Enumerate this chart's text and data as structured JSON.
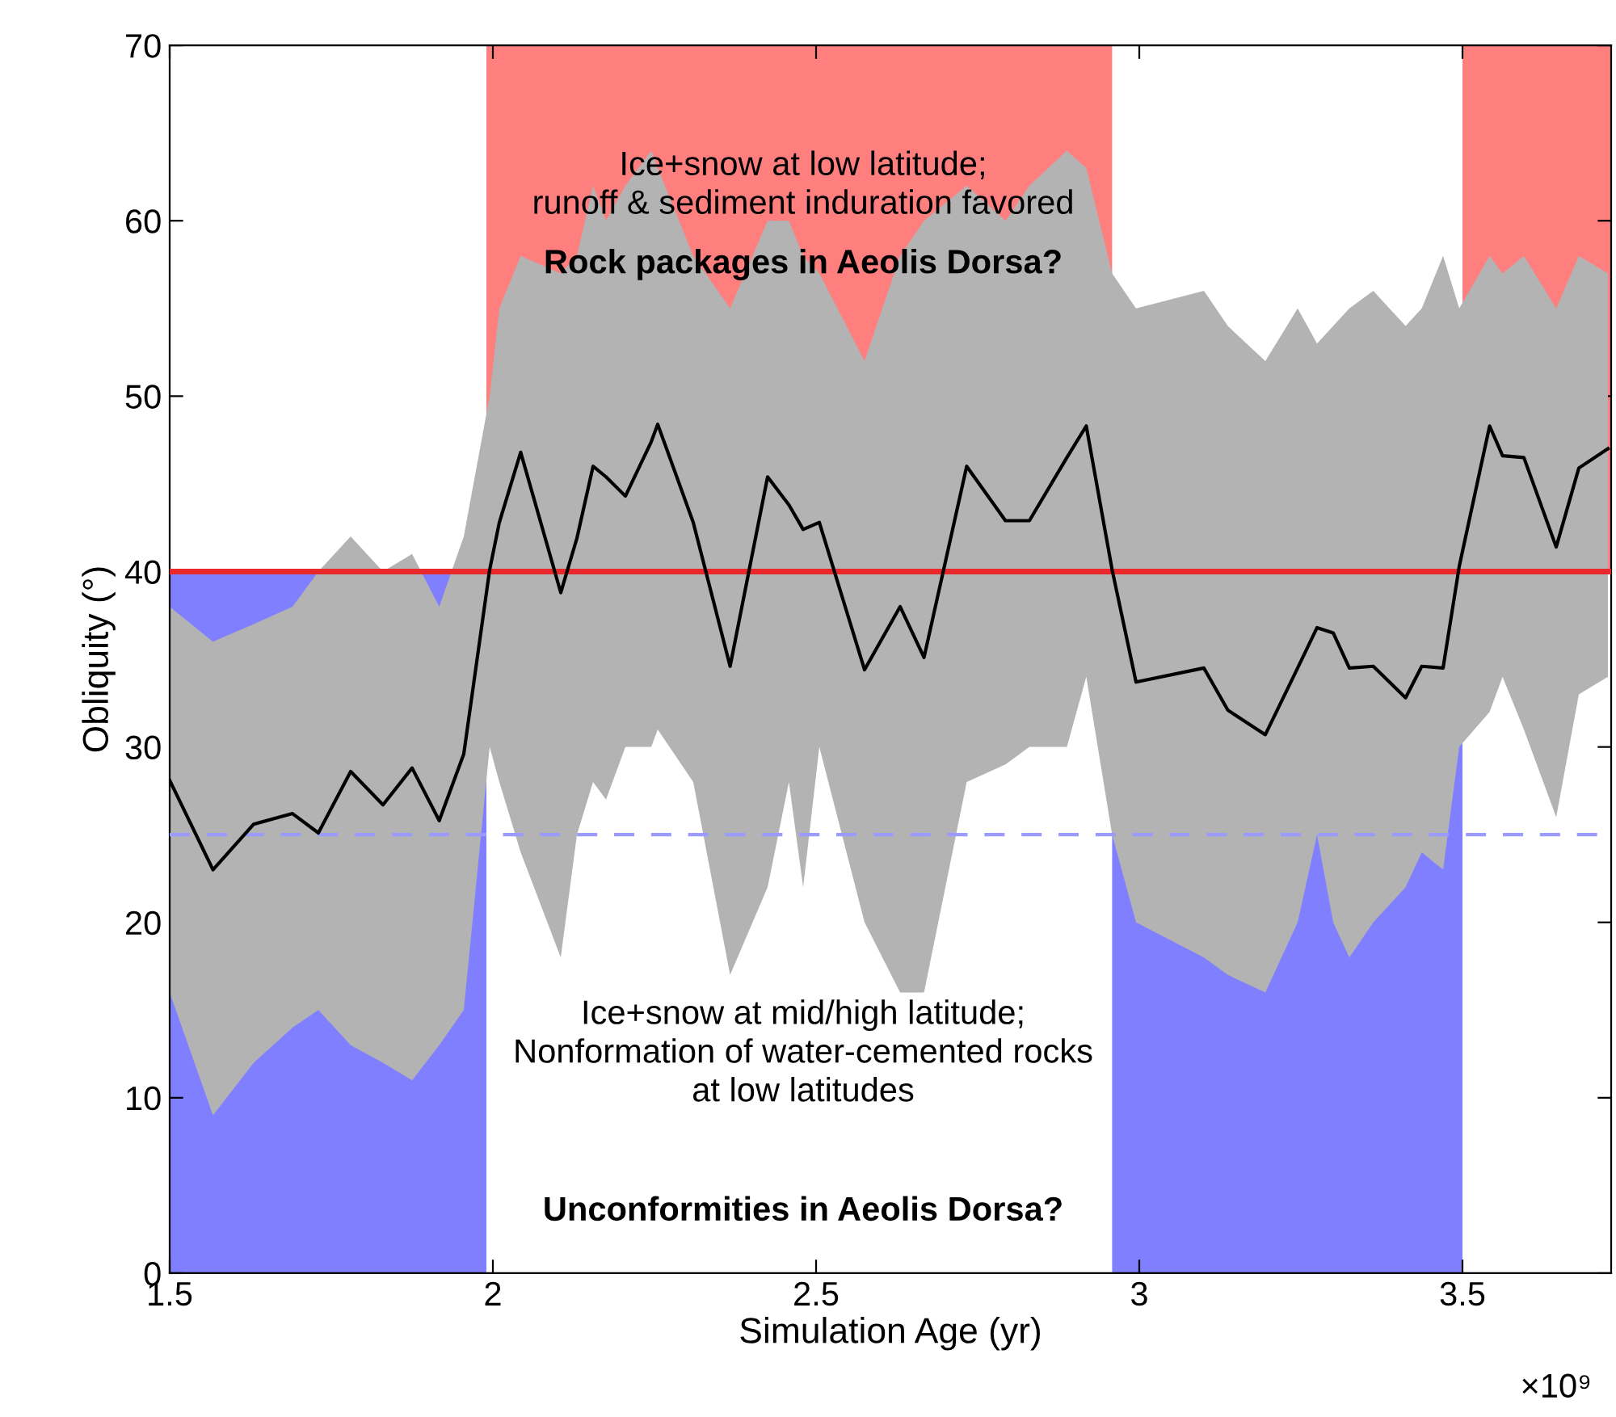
{
  "chart_data": {
    "type": "line",
    "xlabel": "Simulation Age (yr)",
    "ylabel": "Obliquity (°)",
    "x": [
      1.5,
      1.567,
      1.63,
      1.69,
      1.73,
      1.78,
      1.83,
      1.875,
      1.917,
      1.955,
      1.995,
      2.01,
      2.043,
      2.105,
      2.13,
      2.155,
      2.175,
      2.205,
      2.245,
      2.255,
      2.31,
      2.367,
      2.425,
      2.458,
      2.48,
      2.505,
      2.575,
      2.63,
      2.667,
      2.733,
      2.793,
      2.83,
      2.888,
      2.918,
      2.958,
      2.995,
      3.1,
      3.137,
      3.195,
      3.245,
      3.275,
      3.3,
      3.325,
      3.362,
      3.412,
      3.437,
      3.47,
      3.495,
      3.542,
      3.562,
      3.595,
      3.645,
      3.68,
      3.725
    ],
    "series": [
      {
        "color": "#000000",
        "values": [
          28.1,
          23.0,
          25.6,
          26.2,
          25.1,
          28.6,
          26.7,
          28.8,
          25.8,
          29.6,
          40.1,
          42.8,
          46.8,
          38.8,
          41.9,
          46.0,
          45.4,
          44.3,
          47.4,
          48.4,
          42.8,
          34.6,
          45.4,
          43.8,
          42.4,
          42.8,
          34.4,
          38.0,
          35.1,
          46.0,
          42.9,
          42.9,
          46.5,
          48.3,
          40.1,
          33.7,
          34.5,
          32.1,
          30.7,
          34.5,
          36.8,
          36.5,
          34.5,
          34.6,
          32.8,
          34.6,
          34.5,
          40.3,
          48.3,
          46.6,
          46.5,
          41.4,
          45.9,
          47.0
        ],
        "lower": [
          16,
          9,
          12,
          14,
          15,
          13,
          12,
          11,
          13,
          15,
          30,
          28,
          24,
          18,
          25,
          28,
          27,
          30,
          30,
          31,
          28,
          17,
          22,
          28,
          22,
          30,
          20,
          16,
          16,
          28,
          29,
          30,
          30,
          34,
          25,
          20,
          18,
          17,
          16,
          20,
          25,
          20,
          18,
          20,
          22,
          24,
          23,
          30,
          32,
          34,
          31,
          26,
          33,
          34
        ],
        "upper": [
          38,
          36,
          37,
          38,
          40,
          42,
          40,
          41,
          38,
          42,
          50,
          55,
          58,
          57,
          58,
          62,
          60,
          62,
          64,
          63,
          58,
          55,
          60,
          60,
          58,
          57,
          52,
          58,
          60,
          62,
          60,
          62,
          64,
          63,
          57,
          55,
          56,
          54,
          52,
          55,
          53,
          54,
          55,
          56,
          54,
          55,
          58,
          55,
          58,
          57,
          58,
          55,
          58,
          57
        ]
      }
    ],
    "xlim": [
      1.5,
      3.73
    ],
    "xticks": [
      1.5,
      2,
      2.5,
      3,
      3.5
    ],
    "ylim": [
      0,
      70
    ],
    "yticks": [
      0,
      10,
      20,
      30,
      40,
      50,
      60,
      70
    ],
    "grid": false,
    "legend": false,
    "ref_lines": [
      {
        "axis": "y",
        "value": 40,
        "color": "#e8282a",
        "line_style": "solid"
      },
      {
        "axis": "y",
        "value": 25,
        "color": "#9a9aff",
        "line_style": "dashed"
      }
    ],
    "bands": [
      {
        "axis": "x",
        "from": 1.5,
        "to": 1.99,
        "color": "#7f7fff"
      },
      {
        "axis": "x",
        "from": 1.99,
        "to": 2.958,
        "color": "#ff7f7f"
      },
      {
        "axis": "x",
        "from": 2.958,
        "to": 3.5,
        "color": "#7f7fff"
      },
      {
        "axis": "x",
        "from": 3.5,
        "to": 3.73,
        "color": "#ff7f7f"
      }
    ],
    "annotations": [
      "Ice+snow at low latitude;\nrunoff & sediment induration favored",
      "Rock packages in Aeolis Dorsa?",
      "Ice+snow at mid/high latitude;\nNonformation of water-cemented rocks\nat low latitudes",
      "Unconformities in Aeolis Dorsa?",
      "×10⁹"
    ]
  }
}
